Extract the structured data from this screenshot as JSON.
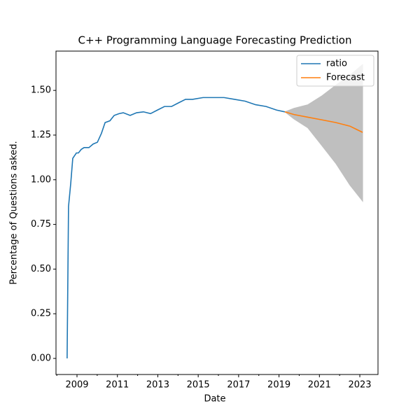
{
  "chart_data": {
    "type": "line",
    "title": "C++ Programming Language Forecasting Prediction",
    "x_label": "Date",
    "y_label": "Percentage of Questions asked.",
    "xlim": [
      2007.96,
      2023.9
    ],
    "ylim": [
      -0.09,
      1.72
    ],
    "xticks": [
      2009,
      2011,
      2013,
      2015,
      2017,
      2019,
      2021,
      2023
    ],
    "xminorticks": [
      2008,
      2010,
      2012,
      2014,
      2016,
      2018,
      2020,
      2022
    ],
    "yticks": [
      {
        "value": 0,
        "label": "0.00"
      },
      {
        "value": 0.25,
        "label": "0.25"
      },
      {
        "value": 0.5,
        "label": "0.50"
      },
      {
        "value": 0.75,
        "label": "0.75"
      },
      {
        "value": 1,
        "label": "1.00"
      },
      {
        "value": 1.25,
        "label": "1.25"
      },
      {
        "value": 1.5,
        "label": "1.50"
      }
    ],
    "legend": "upper right",
    "series": [
      {
        "name": "ratio",
        "color": "#1f77b4",
        "x": [
          2008.51,
          2008.58,
          2008.69,
          2008.79,
          2008.97,
          2009.07,
          2009.21,
          2009.35,
          2009.59,
          2009.8,
          2010.01,
          2010.21,
          2010.39,
          2010.63,
          2010.84,
          2011.08,
          2011.29,
          2011.63,
          2011.95,
          2012.29,
          2012.64,
          2012.98,
          2013.33,
          2013.68,
          2014.02,
          2014.37,
          2014.72,
          2015.24,
          2015.76,
          2016.28,
          2016.8,
          2017.32,
          2017.84,
          2018.36,
          2018.88,
          2019.29
        ],
        "values": [
          0,
          0.85,
          0.98,
          1.12,
          1.15,
          1.15,
          1.17,
          1.18,
          1.18,
          1.2,
          1.21,
          1.26,
          1.32,
          1.33,
          1.36,
          1.37,
          1.375,
          1.36,
          1.375,
          1.38,
          1.37,
          1.39,
          1.41,
          1.41,
          1.43,
          1.45,
          1.45,
          1.46,
          1.46,
          1.46,
          1.45,
          1.44,
          1.42,
          1.41,
          1.39,
          1.38
        ]
      },
      {
        "name": "Forecast",
        "color": "#ff7f0e",
        "x": [
          2019.29,
          2019.74,
          2020.43,
          2021.13,
          2021.82,
          2022.51,
          2023.14
        ],
        "values": [
          1.38,
          1.365,
          1.35,
          1.335,
          1.32,
          1.3,
          1.265
        ],
        "lower": [
          1.38,
          1.34,
          1.29,
          1.19,
          1.09,
          0.97,
          0.88
        ],
        "upper": [
          1.38,
          1.4,
          1.42,
          1.47,
          1.53,
          1.585,
          1.645
        ],
        "band_color": "#bfbfbf"
      }
    ]
  }
}
